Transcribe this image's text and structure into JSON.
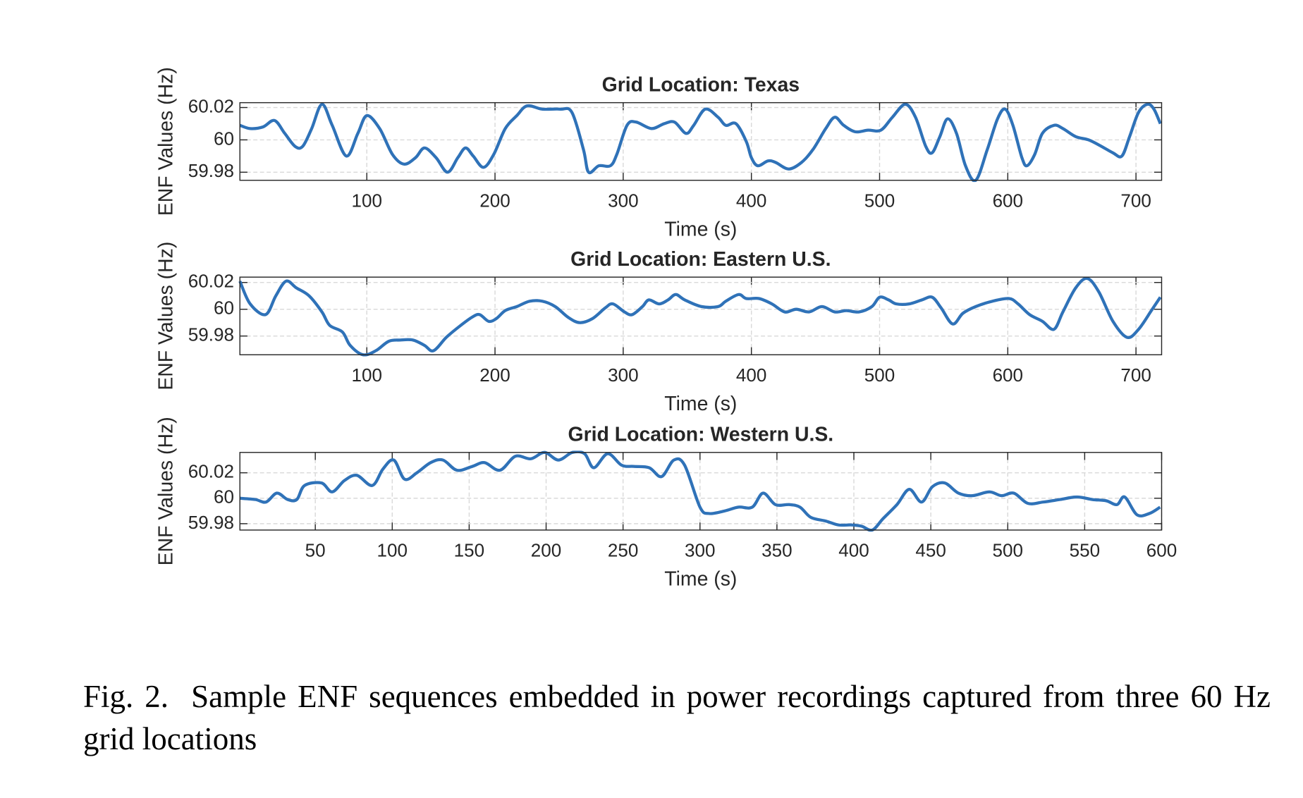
{
  "chart_data": [
    {
      "type": "line",
      "title": "Grid Location: Texas",
      "xlabel": "Time (s)",
      "ylabel": "ENF Values (Hz)",
      "color": "#2f72b8",
      "grid": true,
      "xlim": [
        1,
        720
      ],
      "ylim": [
        59.975,
        60.023
      ],
      "xticks": [
        100,
        200,
        300,
        400,
        500,
        600,
        700
      ],
      "yticks": [
        59.98,
        60,
        60.02
      ],
      "x": [
        1,
        9,
        19,
        28,
        36,
        44,
        50,
        57,
        65,
        73,
        84,
        93,
        100,
        110,
        120,
        129,
        138,
        145,
        154,
        163,
        171,
        177,
        183,
        191,
        199,
        208,
        217,
        225,
        237,
        251,
        260,
        269,
        273,
        281,
        290,
        295,
        303,
        310,
        322,
        332,
        340,
        349,
        355,
        364,
        374,
        380,
        388,
        396,
        400,
        405,
        413,
        419,
        429,
        439,
        448,
        458,
        465,
        472,
        481,
        491,
        501,
        510,
        520,
        528,
        536,
        541,
        547,
        553,
        560,
        567,
        575,
        584,
        592,
        598,
        604,
        611,
        615,
        621,
        627,
        636,
        643,
        653,
        663,
        673,
        682,
        689,
        695,
        702,
        709,
        714,
        719
      ],
      "values": [
        60.009,
        60.007,
        60.008,
        60.012,
        60.004,
        59.996,
        59.996,
        60.007,
        60.022,
        60.009,
        59.99,
        60.004,
        60.015,
        60.007,
        59.991,
        59.985,
        59.989,
        59.995,
        59.989,
        59.98,
        59.989,
        59.995,
        59.99,
        59.983,
        59.991,
        60.007,
        60.015,
        60.021,
        60.019,
        60.019,
        60.017,
        59.994,
        59.98,
        59.984,
        59.984,
        59.991,
        60.009,
        60.011,
        60.007,
        60.01,
        60.011,
        60.004,
        60.009,
        60.019,
        60.014,
        60.009,
        60.01,
        59.999,
        59.989,
        59.984,
        59.987,
        59.986,
        59.982,
        59.986,
        59.994,
        60.007,
        60.014,
        60.009,
        60.005,
        60.006,
        60.006,
        60.014,
        60.022,
        60.014,
        59.996,
        59.992,
        60.002,
        60.013,
        60.004,
        59.984,
        59.975,
        59.994,
        60.013,
        60.019,
        60.009,
        59.989,
        59.984,
        59.991,
        60.004,
        60.009,
        60.007,
        60.002,
        60.0,
        59.996,
        59.992,
        59.99,
        60.002,
        60.017,
        60.022,
        60.019,
        60.01
      ]
    },
    {
      "type": "line",
      "title": "Grid Location: Eastern U.S.",
      "xlabel": "Time (s)",
      "ylabel": "ENF Values (Hz)",
      "color": "#2f72b8",
      "grid": true,
      "xlim": [
        1,
        720
      ],
      "ylim": [
        59.966,
        60.024
      ],
      "xticks": [
        100,
        200,
        300,
        400,
        500,
        600,
        700
      ],
      "yticks": [
        59.98,
        60,
        60.02
      ],
      "x": [
        1,
        9,
        21,
        29,
        37,
        45,
        55,
        65,
        71,
        81,
        87,
        97,
        107,
        117,
        126,
        136,
        145,
        152,
        162,
        172,
        182,
        188,
        195,
        201,
        208,
        217,
        227,
        237,
        247,
        257,
        266,
        276,
        286,
        292,
        301,
        307,
        315,
        320,
        328,
        335,
        341,
        348,
        361,
        374,
        380,
        390,
        396,
        406,
        416,
        426,
        435,
        445,
        455,
        465,
        474,
        484,
        494,
        500,
        507,
        513,
        523,
        533,
        541,
        548,
        557,
        565,
        575,
        588,
        601,
        608,
        617,
        627,
        636,
        643,
        653,
        662,
        671,
        682,
        693,
        702,
        712,
        719
      ],
      "values": [
        60.021,
        60.004,
        59.996,
        60.01,
        60.021,
        60.016,
        60.01,
        59.998,
        59.988,
        59.983,
        59.973,
        59.966,
        59.969,
        59.976,
        59.977,
        59.977,
        59.973,
        59.969,
        59.979,
        59.987,
        59.994,
        59.996,
        59.991,
        59.993,
        59.999,
        60.002,
        60.006,
        60.006,
        60.002,
        59.994,
        59.99,
        59.993,
        60.001,
        60.004,
        59.998,
        59.996,
        60.002,
        60.007,
        60.004,
        60.007,
        60.011,
        60.007,
        60.002,
        60.002,
        60.006,
        60.011,
        60.008,
        60.008,
        60.004,
        59.998,
        60.0,
        59.998,
        60.002,
        59.998,
        59.999,
        59.998,
        60.002,
        60.009,
        60.007,
        60.004,
        60.004,
        60.007,
        60.009,
        60.001,
        59.989,
        59.997,
        60.002,
        60.006,
        60.008,
        60.004,
        59.996,
        59.991,
        59.985,
        59.998,
        60.016,
        60.023,
        60.013,
        59.991,
        59.979,
        59.985,
        59.999,
        60.009
      ]
    },
    {
      "type": "line",
      "title": "Grid Location: Western U.S.",
      "xlabel": "Time (s)",
      "ylabel": "ENF Values (Hz)",
      "color": "#2f72b8",
      "grid": true,
      "xlim": [
        1,
        600
      ],
      "ylim": [
        59.975,
        60.036
      ],
      "xticks": [
        50,
        100,
        150,
        200,
        250,
        300,
        350,
        400,
        450,
        500,
        550,
        600
      ],
      "yticks": [
        59.98,
        60,
        60.02
      ],
      "x": [
        1,
        11,
        18,
        25,
        32,
        38,
        43,
        54,
        61,
        69,
        77,
        87,
        94,
        101,
        108,
        116,
        125,
        133,
        142,
        152,
        160,
        170,
        180,
        190,
        199,
        208,
        217,
        225,
        231,
        240,
        249,
        257,
        267,
        275,
        283,
        290,
        300,
        306,
        316,
        325,
        334,
        341,
        349,
        358,
        365,
        372,
        382,
        390,
        398,
        405,
        412,
        419,
        428,
        436,
        444,
        451,
        459,
        468,
        477,
        488,
        496,
        504,
        513,
        523,
        534,
        545,
        555,
        564,
        571,
        576,
        584,
        592,
        599
      ],
      "values": [
        60.0,
        59.999,
        59.997,
        60.004,
        59.999,
        59.999,
        60.01,
        60.012,
        60.005,
        60.014,
        60.018,
        60.01,
        60.023,
        60.03,
        60.015,
        60.02,
        60.028,
        60.03,
        60.022,
        60.025,
        60.028,
        60.022,
        60.033,
        60.031,
        60.036,
        60.03,
        60.036,
        60.035,
        60.024,
        60.035,
        60.026,
        60.025,
        60.024,
        60.017,
        60.03,
        60.026,
        59.993,
        59.988,
        59.99,
        59.993,
        59.993,
        60.004,
        59.995,
        59.995,
        59.993,
        59.985,
        59.982,
        59.979,
        59.979,
        59.978,
        59.975,
        59.984,
        59.995,
        60.007,
        59.997,
        60.009,
        60.012,
        60.004,
        60.002,
        60.005,
        60.002,
        60.004,
        59.996,
        59.997,
        59.999,
        60.001,
        59.999,
        59.998,
        59.995,
        60.001,
        59.987,
        59.988,
        59.993
      ]
    }
  ],
  "caption": "Fig. 2.  Sample ENF sequences embedded in power recordings captured from three 60 Hz grid locations"
}
